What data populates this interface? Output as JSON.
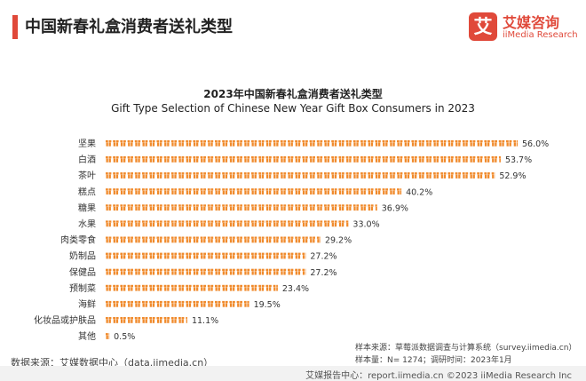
{
  "header": {
    "title": "中国新春礼盒消费者送礼类型"
  },
  "logo": {
    "mark": "艾",
    "name_cn": "艾媒咨询",
    "name_en": "iiMedia Research"
  },
  "chart_data": {
    "type": "bar",
    "orientation": "horizontal",
    "title": "2023年中国新春礼盒消费者送礼类型",
    "subtitle": "Gift Type Selection of Chinese New Year Gift Box Consumers in 2023",
    "categories": [
      "坚果",
      "白酒",
      "茶叶",
      "糕点",
      "糖果",
      "水果",
      "肉类零食",
      "奶制品",
      "保健品",
      "预制菜",
      "海鲜",
      "化妆品或护肤品",
      "其他"
    ],
    "values": [
      56.0,
      53.7,
      52.9,
      40.2,
      36.9,
      33.0,
      29.2,
      27.2,
      27.2,
      23.4,
      19.5,
      11.1,
      0.5
    ],
    "value_labels": [
      "56.0%",
      "53.7%",
      "52.9%",
      "40.2%",
      "36.9%",
      "33.0%",
      "29.2%",
      "27.2%",
      "27.2%",
      "23.4%",
      "19.5%",
      "11.1%",
      "0.5%"
    ],
    "unit": "%",
    "marker": "gift-icon",
    "bar_color": "#f08a2b",
    "xlim": [
      0,
      56
    ]
  },
  "source_left": "数据来源：艾媒数据中心（data.iimedia.cn）",
  "notes": {
    "line1": "样本来源：草莓派数据调查与计算系统（survey.iimedia.cn）",
    "line2": "样本量：N= 1274；调研时间：2023年1月"
  },
  "footer": {
    "text": "艾媒报告中心：report.iimedia.cn    ©2023  iiMedia Research  Inc"
  }
}
